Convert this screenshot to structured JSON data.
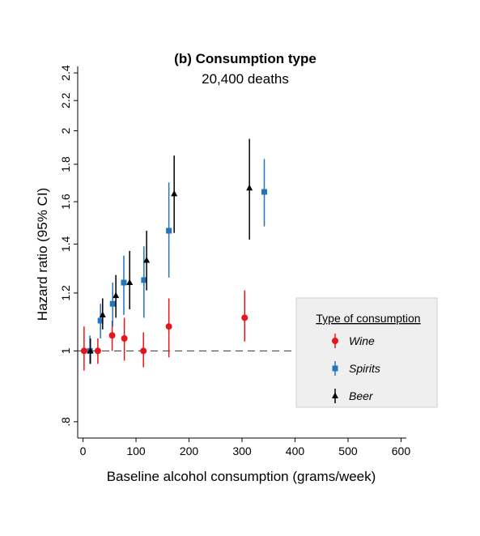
{
  "chart_data": {
    "type": "scatter",
    "title": "(b) Consumption type",
    "subtitle": "20,400 deaths",
    "xlabel": "Baseline alcohol consumption (grams/week)",
    "ylabel": "Hazard ratio (95% CI)",
    "xlim": [
      -10,
      610
    ],
    "ylim": [
      0.76,
      2.45
    ],
    "y_log_scale": true,
    "x_ticks": [
      "0",
      "100",
      "200",
      "300",
      "400",
      "500",
      "600"
    ],
    "y_ticks": [
      ".8",
      "1",
      "1.2",
      "1.4",
      "1.6",
      "1.8",
      "2",
      "2.2",
      "2.4"
    ],
    "reference_line": 1.0,
    "legend": {
      "title": "Type of consumption",
      "position": "right"
    },
    "series": [
      {
        "name": "Wine",
        "color": "#e8141b",
        "marker": "circle",
        "points": [
          {
            "x": 2,
            "y": 1.0,
            "lo": 0.94,
            "hi": 1.08
          },
          {
            "x": 28,
            "y": 1.0,
            "lo": 0.96,
            "hi": 1.04
          },
          {
            "x": 55,
            "y": 1.05,
            "lo": 1.0,
            "hi": 1.1
          },
          {
            "x": 78,
            "y": 1.04,
            "lo": 0.97,
            "hi": 1.11
          },
          {
            "x": 114,
            "y": 1.0,
            "lo": 0.95,
            "hi": 1.06
          },
          {
            "x": 162,
            "y": 1.08,
            "lo": 0.98,
            "hi": 1.18
          },
          {
            "x": 305,
            "y": 1.11,
            "lo": 1.03,
            "hi": 1.21
          }
        ]
      },
      {
        "name": "Spirits",
        "color": "#2474c0",
        "marker": "square",
        "points": [
          {
            "x": 13,
            "y": 1.0,
            "lo": 0.96,
            "hi": 1.05
          },
          {
            "x": 33,
            "y": 1.1,
            "lo": 1.04,
            "hi": 1.16
          },
          {
            "x": 56,
            "y": 1.16,
            "lo": 1.08,
            "hi": 1.24
          },
          {
            "x": 77,
            "y": 1.24,
            "lo": 1.12,
            "hi": 1.35
          },
          {
            "x": 115,
            "y": 1.25,
            "lo": 1.11,
            "hi": 1.39
          },
          {
            "x": 162,
            "y": 1.46,
            "lo": 1.26,
            "hi": 1.7
          },
          {
            "x": 342,
            "y": 1.65,
            "lo": 1.48,
            "hi": 1.83
          }
        ]
      },
      {
        "name": "Beer",
        "color": "#000000",
        "marker": "triangle",
        "points": [
          {
            "x": 14,
            "y": 1.0,
            "lo": 0.96,
            "hi": 1.04
          },
          {
            "x": 37,
            "y": 1.12,
            "lo": 1.07,
            "hi": 1.18
          },
          {
            "x": 62,
            "y": 1.19,
            "lo": 1.11,
            "hi": 1.27
          },
          {
            "x": 88,
            "y": 1.24,
            "lo": 1.14,
            "hi": 1.37
          },
          {
            "x": 120,
            "y": 1.33,
            "lo": 1.21,
            "hi": 1.46
          },
          {
            "x": 172,
            "y": 1.64,
            "lo": 1.45,
            "hi": 1.85
          },
          {
            "x": 314,
            "y": 1.67,
            "lo": 1.42,
            "hi": 1.95
          }
        ]
      }
    ]
  }
}
